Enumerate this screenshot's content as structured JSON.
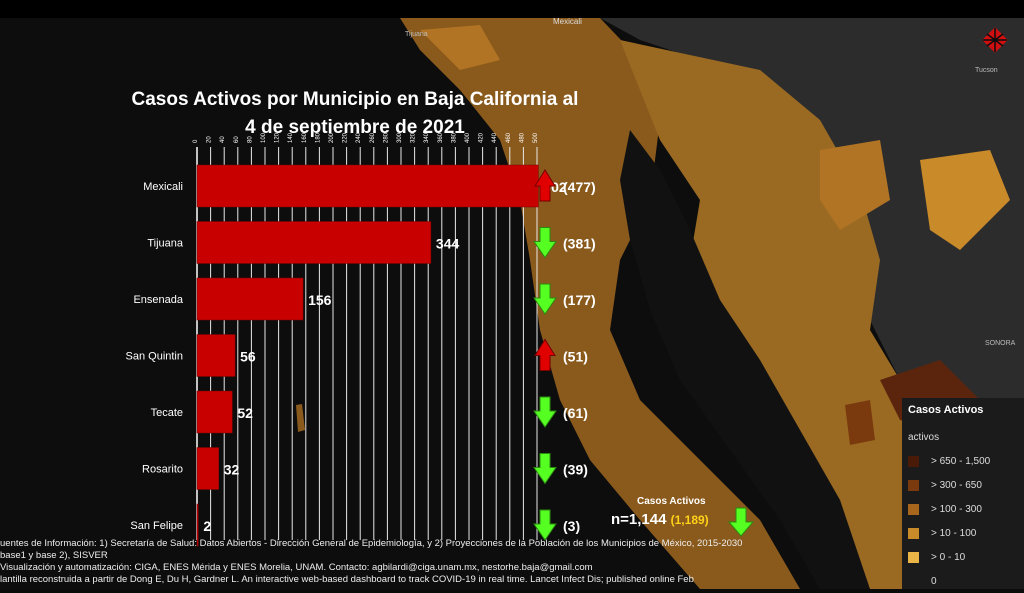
{
  "title_line1": "Casos Activos por Municipio en Baja California al",
  "title_line2": "4 de septiembre de 2021",
  "colors": {
    "bar": "#c80000",
    "up_arrow": "#e00000",
    "down_arrow": "#55ff22",
    "prev_total": "#ffd21a"
  },
  "chart_data": {
    "type": "bar",
    "orientation": "horizontal",
    "title": "Casos Activos por Municipio en Baja California al 4 de septiembre de 2021",
    "categories": [
      "Mexicali",
      "Tijuana",
      "Ensenada",
      "San Quintin",
      "Tecate",
      "Rosarito",
      "San Felipe"
    ],
    "values": [
      502,
      344,
      156,
      56,
      52,
      32,
      2
    ],
    "value_labels": [
      "502",
      "344",
      "156",
      "56",
      "52",
      "32",
      "2"
    ],
    "previous_values": [
      477,
      381,
      177,
      51,
      61,
      39,
      3
    ],
    "previous_labels": [
      "(477)",
      "(381)",
      "(177)",
      "(51)",
      "(61)",
      "(39)",
      "(3)"
    ],
    "trend": [
      "up",
      "down",
      "down",
      "up",
      "down",
      "down",
      "down"
    ],
    "xlim": [
      0,
      500
    ],
    "x_ticks": [
      0,
      20,
      40,
      60,
      80,
      100,
      120,
      140,
      160,
      180,
      200,
      220,
      240,
      260,
      280,
      300,
      320,
      340,
      360,
      380,
      400,
      420,
      440,
      460,
      480,
      500
    ],
    "grid": true
  },
  "total": {
    "label": "Casos Activos",
    "value": "n=1,144",
    "previous": "(1,189)",
    "trend": "down"
  },
  "legend": {
    "title": "Casos Activos",
    "subtitle": "activos",
    "items": [
      {
        "label": "> 650 - 1,500",
        "color": "#4a1a08"
      },
      {
        "label": "> 300 - 650",
        "color": "#7a3a0e"
      },
      {
        "label": "> 100 - 300",
        "color": "#a8651c"
      },
      {
        "label": "> 10 - 100",
        "color": "#c98a2a"
      },
      {
        "label": "> 0 - 10",
        "color": "#e8b546"
      },
      {
        "label": "0",
        "color": "#1b1b1b"
      }
    ]
  },
  "map_labels": [
    "Mexicali",
    "Tijuana",
    "Tucson",
    "SONORA"
  ],
  "footer": [
    "uentes de Información: 1) Secretaría de Salud: Datos Abiertos - Dirección General de Epidemiología, y 2) Proyecciones de la Población de los Municipios de México, 2015-2030",
    "base1 y base 2), SISVER",
    "Visualización y automatización: CIGA, ENES Mérida y ENES Morelia, UNAM. Contacto: agbilardi@ciga.unam.mx, nestorhe.baja@gmail.com",
    "lantilla reconstruida a partir de Dong E, Du H, Gardner L. An interactive web-based dashboard to track COVID-19 in real time. Lancet Infect Dis; published online Feb"
  ]
}
